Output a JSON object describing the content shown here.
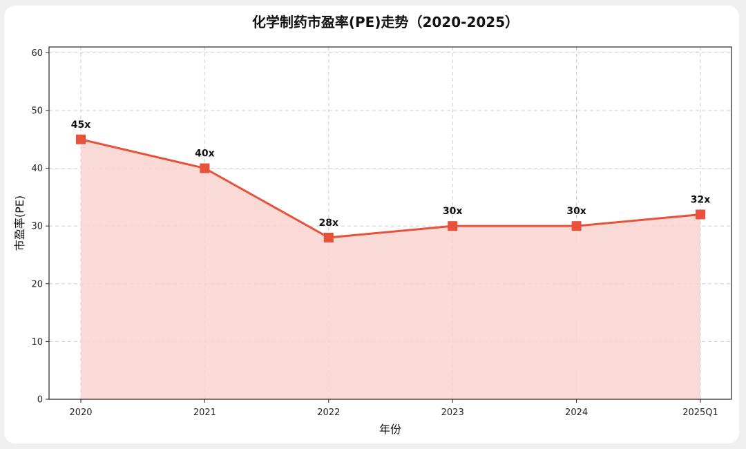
{
  "chart_data": {
    "type": "line",
    "title": "化学制药市盈率(PE)走势（2020-2025）",
    "xlabel": "年份",
    "ylabel": "市盈率(PE)",
    "categories": [
      "2020",
      "2021",
      "2022",
      "2023",
      "2024",
      "2025Q1"
    ],
    "series": [
      {
        "values": [
          45,
          40,
          28,
          30,
          30,
          32
        ],
        "data_labels": [
          "45x",
          "40x",
          "28x",
          "30x",
          "30x",
          "32x"
        ]
      }
    ],
    "ylim": [
      0,
      61
    ],
    "yticks": [
      "0",
      "10",
      "20",
      "30",
      "40",
      "50",
      "60"
    ],
    "grid": true,
    "legend": "none",
    "line_color": "#e8513c",
    "fill_color": "#f8d3cf",
    "marker": "square"
  }
}
